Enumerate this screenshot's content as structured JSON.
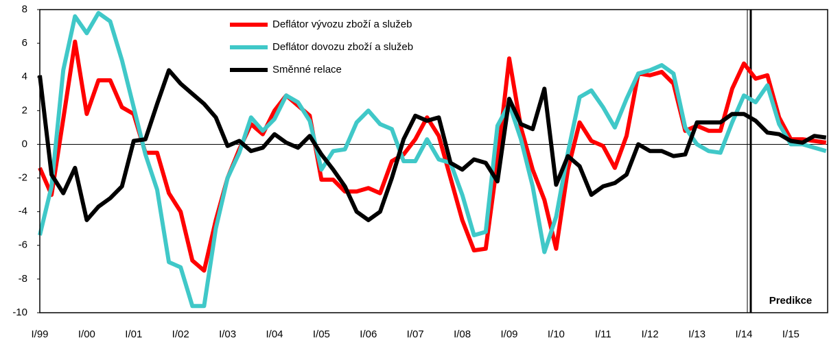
{
  "chart_data": {
    "type": "line",
    "categories": [
      "I/99",
      null,
      null,
      null,
      "I/00",
      null,
      null,
      null,
      "I/01",
      null,
      null,
      null,
      "I/02",
      null,
      null,
      null,
      "I/03",
      null,
      null,
      null,
      "I/04",
      null,
      null,
      null,
      "I/05",
      null,
      null,
      null,
      "I/06",
      null,
      null,
      null,
      "I/07",
      null,
      null,
      null,
      "I/08",
      null,
      null,
      null,
      "I/09",
      null,
      null,
      null,
      "I/10",
      null,
      null,
      null,
      "I/11",
      null,
      null,
      null,
      "I/12",
      null,
      null,
      null,
      "I/13",
      null,
      null,
      null,
      "I/14",
      null,
      null,
      null,
      "I/15",
      null,
      null,
      null
    ],
    "series": [
      {
        "name": "Deflátor vývozu zboží a služeb",
        "color": "#ff0000",
        "values": [
          -1.4,
          -3.0,
          1.5,
          6.1,
          1.8,
          3.8,
          3.8,
          2.2,
          1.8,
          -0.5,
          -0.5,
          -2.9,
          -4.0,
          -6.9,
          -7.5,
          -4.5,
          -2.0,
          -0.3,
          1.2,
          0.6,
          2.0,
          2.9,
          2.3,
          1.7,
          -2.1,
          -2.1,
          -2.8,
          -2.8,
          -2.6,
          -2.9,
          -1.0,
          -0.6,
          0.3,
          1.6,
          0.5,
          -2.0,
          -4.5,
          -6.3,
          -6.2,
          -1.0,
          5.1,
          1.0,
          -1.5,
          -3.3,
          -6.2,
          -1.5,
          1.3,
          0.2,
          -0.1,
          -1.4,
          0.5,
          4.2,
          4.1,
          4.3,
          3.6,
          0.8,
          1.1,
          0.8,
          0.8,
          3.3,
          4.8,
          3.9,
          4.1,
          1.6,
          0.3,
          0.3,
          0.2,
          0.1
        ]
      },
      {
        "name": "Deflátor dovozu zboží a služeb",
        "color": "#40c8c8",
        "values": [
          -5.4,
          -2.5,
          4.4,
          7.6,
          6.6,
          7.8,
          7.3,
          5.0,
          2.2,
          -0.6,
          -2.7,
          -7.0,
          -7.3,
          -9.6,
          -9.6,
          -5.0,
          -2.0,
          -0.5,
          1.6,
          0.8,
          1.5,
          2.9,
          2.5,
          1.4,
          -1.5,
          -0.4,
          -0.3,
          1.3,
          2.0,
          1.2,
          0.9,
          -1.0,
          -1.0,
          0.3,
          -0.9,
          -1.1,
          -3.0,
          -5.4,
          -5.2,
          1.1,
          2.4,
          0.3,
          -2.5,
          -6.4,
          -4.3,
          -0.5,
          2.8,
          3.2,
          2.2,
          1.0,
          2.7,
          4.2,
          4.4,
          4.7,
          4.2,
          1.0,
          0.0,
          -0.4,
          -0.5,
          1.3,
          2.9,
          2.5,
          3.5,
          1.2,
          0.0,
          0.0,
          -0.2,
          -0.4
        ]
      },
      {
        "name": "Směnné relace",
        "color": "#000000",
        "values": [
          4.1,
          -1.8,
          -2.9,
          -1.4,
          -4.5,
          -3.7,
          -3.2,
          -2.5,
          0.2,
          0.3,
          2.4,
          4.4,
          3.6,
          3.0,
          2.4,
          1.6,
          -0.1,
          0.2,
          -0.4,
          -0.2,
          0.6,
          0.1,
          -0.2,
          0.5,
          -0.6,
          -1.5,
          -2.5,
          -4.0,
          -4.5,
          -4.0,
          -2.0,
          0.3,
          1.7,
          1.4,
          1.6,
          -1.1,
          -1.5,
          -0.9,
          -1.1,
          -2.2,
          2.7,
          1.2,
          0.9,
          3.3,
          -2.4,
          -0.7,
          -1.3,
          -3.0,
          -2.5,
          -2.3,
          -1.8,
          0.0,
          -0.4,
          -0.4,
          -0.7,
          -0.6,
          1.3,
          1.3,
          1.3,
          1.8,
          1.8,
          1.4,
          0.7,
          0.6,
          0.2,
          0.1,
          0.5,
          0.4
        ]
      }
    ],
    "ylim": [
      -10,
      8
    ],
    "yticks": [
      -10,
      -8,
      -6,
      -4,
      -2,
      0,
      2,
      4,
      6,
      8
    ],
    "grid": false,
    "legend": "top-center",
    "annotation": "Predikce"
  }
}
